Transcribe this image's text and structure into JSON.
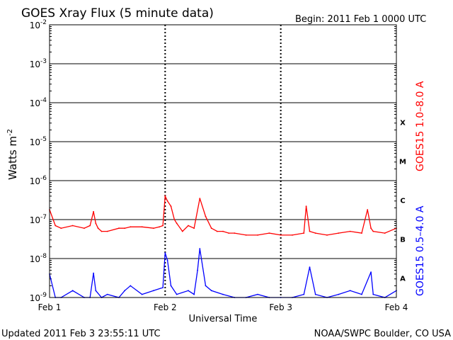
{
  "header": {
    "title": "GOES Xray Flux (5 minute data)",
    "begin": "Begin:  2011 Feb 1 0000 UTC"
  },
  "footer": {
    "updated": "Updated 2011 Feb  3 23:55:11 UTC",
    "credit": "NOAA/SWPC Boulder, CO USA"
  },
  "chart_data": {
    "type": "line",
    "title": "GOES Xray Flux (5 minute data)",
    "xlabel": "Universal Time",
    "ylabel": "Watts m",
    "ylabel_exponent": "-2",
    "x_ticks": [
      "Feb 1",
      "Feb 2",
      "Feb 3",
      "Feb 4"
    ],
    "x_range": [
      0,
      3
    ],
    "x_unit": "days since 2011 Feb 1 0000 UTC",
    "yscale": "log",
    "ylim": [
      1e-09,
      0.01
    ],
    "y_ticks": [
      {
        "base": "10",
        "exp": "-9"
      },
      {
        "base": "10",
        "exp": "-8"
      },
      {
        "base": "10",
        "exp": "-7"
      },
      {
        "base": "10",
        "exp": "-6"
      },
      {
        "base": "10",
        "exp": "-5"
      },
      {
        "base": "10",
        "exp": "-4"
      },
      {
        "base": "10",
        "exp": "-3"
      },
      {
        "base": "10",
        "exp": "-2"
      }
    ],
    "flare_classes": [
      "X",
      "M",
      "C",
      "B",
      "A"
    ],
    "grid": true,
    "series": [
      {
        "name": "GOES15 1.0–8.0 A",
        "color": "#ff0000",
        "x": [
          0,
          0.05,
          0.1,
          0.2,
          0.3,
          0.35,
          0.38,
          0.4,
          0.42,
          0.45,
          0.5,
          0.6,
          0.65,
          0.7,
          0.8,
          0.9,
          0.95,
          0.98,
          1.0,
          1.02,
          1.05,
          1.08,
          1.1,
          1.15,
          1.2,
          1.25,
          1.3,
          1.35,
          1.4,
          1.45,
          1.5,
          1.55,
          1.6,
          1.7,
          1.8,
          1.9,
          2.0,
          2.1,
          2.2,
          2.22,
          2.25,
          2.3,
          2.4,
          2.5,
          2.6,
          2.7,
          2.75,
          2.78,
          2.8,
          2.9,
          3.0
        ],
        "values": [
          1.8e-07,
          7e-08,
          6e-08,
          7e-08,
          6e-08,
          7e-08,
          1.6e-07,
          8e-08,
          6e-08,
          5e-08,
          5e-08,
          6e-08,
          6e-08,
          6.5e-08,
          6.5e-08,
          6e-08,
          6.5e-08,
          7e-08,
          4e-07,
          3e-07,
          2.2e-07,
          1e-07,
          8e-08,
          5e-08,
          7e-08,
          6e-08,
          3.5e-07,
          1.2e-07,
          6e-08,
          5e-08,
          5e-08,
          4.5e-08,
          4.5e-08,
          4e-08,
          4e-08,
          4.5e-08,
          4e-08,
          4e-08,
          4.5e-08,
          2.2e-07,
          5e-08,
          4.5e-08,
          4e-08,
          4.5e-08,
          5e-08,
          4.5e-08,
          1.8e-07,
          6e-08,
          5e-08,
          4.5e-08,
          6e-08
        ]
      },
      {
        "name": "GOES15 0.5–4.0 A",
        "color": "#0000ff",
        "x": [
          0,
          0.05,
          0.1,
          0.2,
          0.3,
          0.35,
          0.38,
          0.4,
          0.45,
          0.5,
          0.6,
          0.65,
          0.7,
          0.8,
          0.9,
          0.98,
          1.0,
          1.02,
          1.05,
          1.1,
          1.2,
          1.25,
          1.28,
          1.3,
          1.35,
          1.4,
          1.5,
          1.6,
          1.7,
          1.8,
          1.9,
          2.0,
          2.1,
          2.2,
          2.25,
          2.3,
          2.4,
          2.5,
          2.6,
          2.7,
          2.78,
          2.8,
          2.9,
          3.0
        ],
        "values": [
          4e-09,
          1e-09,
          1e-09,
          1.5e-09,
          1e-09,
          1e-09,
          4.2e-09,
          1.5e-09,
          1e-09,
          1.2e-09,
          1e-09,
          1.5e-09,
          2e-09,
          1.2e-09,
          1.5e-09,
          1.8e-09,
          1.4e-08,
          9e-09,
          2e-09,
          1.2e-09,
          1.5e-09,
          1.2e-09,
          5e-09,
          1.8e-08,
          2e-09,
          1.5e-09,
          1.2e-09,
          1e-09,
          1e-09,
          1.2e-09,
          1e-09,
          1e-09,
          1e-09,
          1.2e-09,
          6e-09,
          1.2e-09,
          1e-09,
          1.2e-09,
          1.5e-09,
          1.2e-09,
          4.5e-09,
          1.2e-09,
          1e-09,
          1.5e-09
        ]
      }
    ]
  }
}
